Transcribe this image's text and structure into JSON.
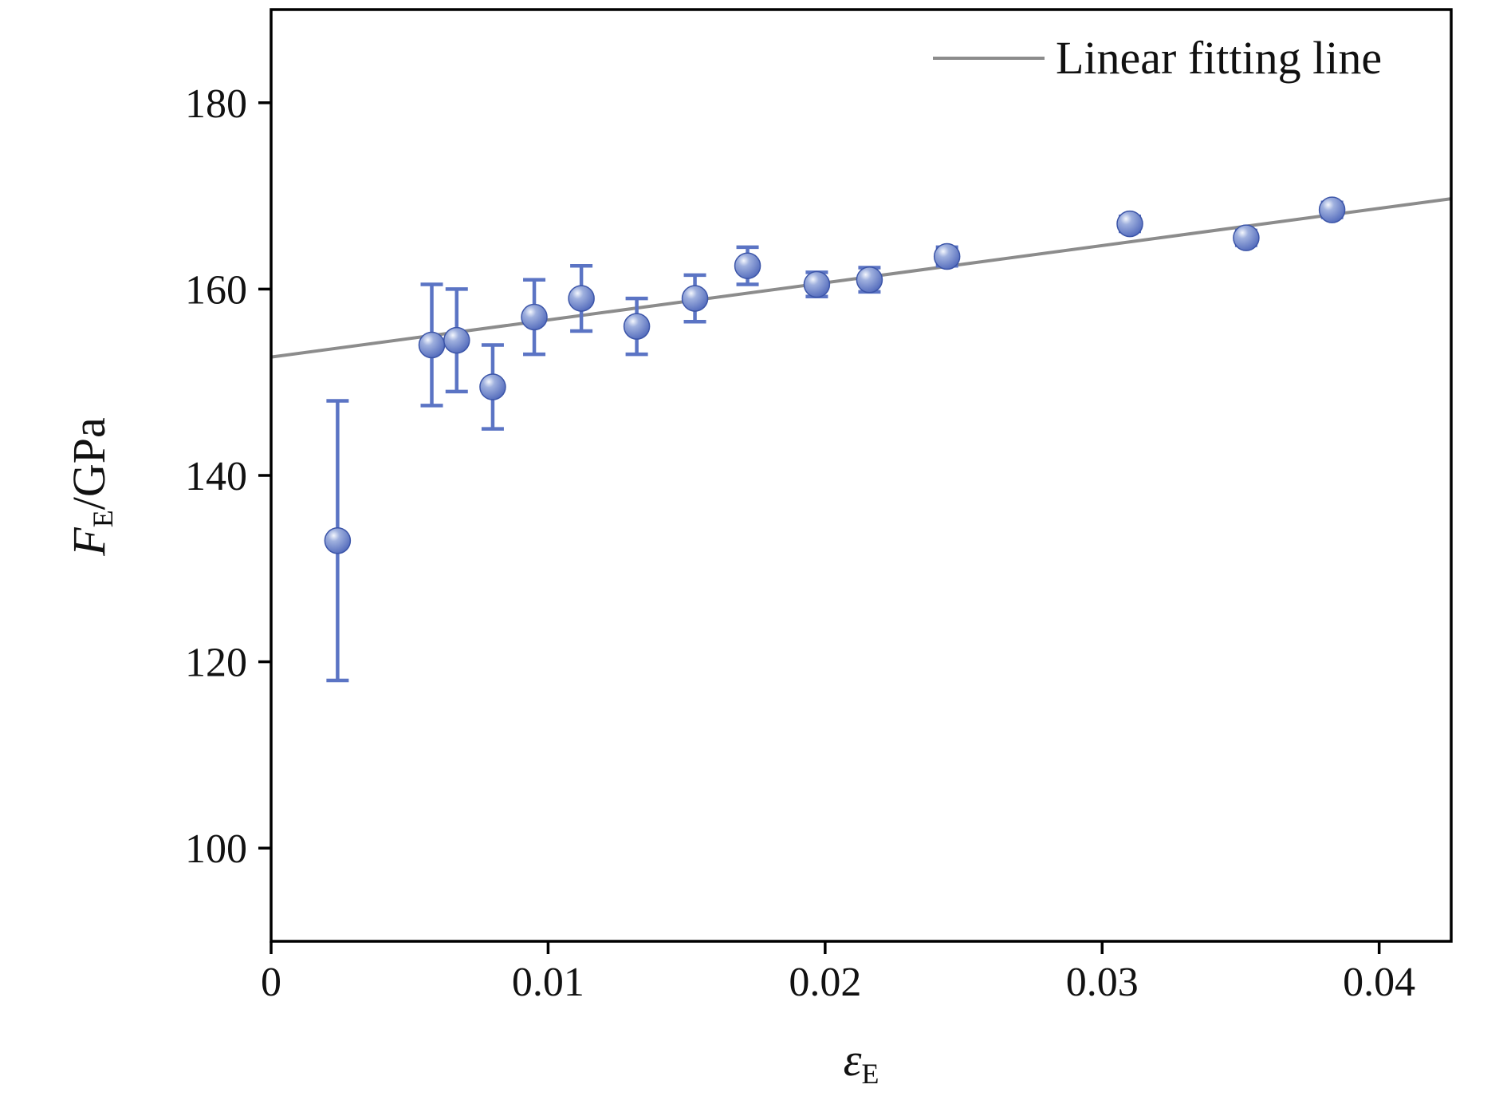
{
  "chart_data": {
    "type": "scatter",
    "title": "",
    "xlabel": {
      "symbol": "ε",
      "subscript": "E"
    },
    "ylabel": {
      "symbol": "F",
      "subscript": "E",
      "unit": "/GPa"
    },
    "xlim": [
      0,
      0.0426
    ],
    "ylim": [
      90,
      190
    ],
    "x_ticks": [
      0,
      0.01,
      0.02,
      0.03,
      0.04
    ],
    "x_tick_labels": [
      "0",
      "0.01",
      "0.02",
      "0.03",
      "0.04"
    ],
    "y_ticks": [
      100,
      120,
      140,
      160,
      180
    ],
    "y_tick_labels": [
      "100",
      "120",
      "140",
      "160",
      "180"
    ],
    "grid": false,
    "legend": {
      "label": "Linear fitting line",
      "position": "top-right"
    },
    "colors": {
      "marker": "#5b74c4",
      "marker_edge": "#3c55a8",
      "error_bar": "#5b74c4",
      "fit_line": "#8c8c8c",
      "frame": "#000000",
      "text": "#111111"
    },
    "series": [
      {
        "name": "measured-points",
        "type": "scatter-errorbar",
        "points": [
          {
            "x": 0.0024,
            "y": 133.0,
            "err": 15.0
          },
          {
            "x": 0.0058,
            "y": 154.0,
            "err": 6.5
          },
          {
            "x": 0.0067,
            "y": 154.5,
            "err": 5.5
          },
          {
            "x": 0.008,
            "y": 149.5,
            "err": 4.5
          },
          {
            "x": 0.0095,
            "y": 157.0,
            "err": 4.0
          },
          {
            "x": 0.0112,
            "y": 159.0,
            "err": 3.5
          },
          {
            "x": 0.0132,
            "y": 156.0,
            "err": 3.0
          },
          {
            "x": 0.0153,
            "y": 159.0,
            "err": 2.5
          },
          {
            "x": 0.0172,
            "y": 162.5,
            "err": 2.0
          },
          {
            "x": 0.0197,
            "y": 160.5,
            "err": 1.3
          },
          {
            "x": 0.0216,
            "y": 161.0,
            "err": 1.3
          },
          {
            "x": 0.0244,
            "y": 163.5,
            "err": 1.0
          },
          {
            "x": 0.031,
            "y": 167.0,
            "err": 0.8
          },
          {
            "x": 0.0352,
            "y": 165.5,
            "err": 0.8
          },
          {
            "x": 0.0383,
            "y": 168.5,
            "err": 0.8
          }
        ]
      },
      {
        "name": "Linear fitting line",
        "type": "line",
        "x": [
          0,
          0.0426
        ],
        "y": [
          152.7,
          169.7
        ],
        "slope": 400,
        "intercept": 152.7
      }
    ]
  }
}
